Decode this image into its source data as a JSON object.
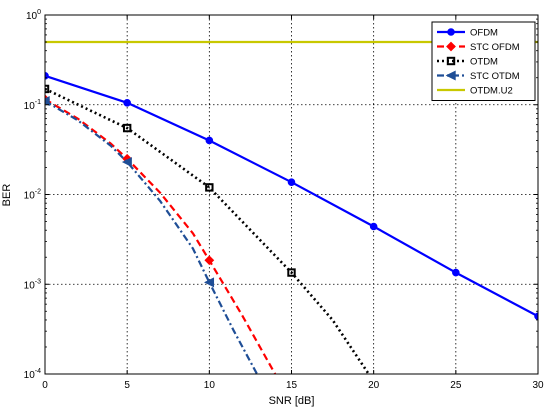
{
  "chart_data": {
    "type": "line",
    "xlabel": "SNR [dB]",
    "ylabel": "BER",
    "xlim": [
      0,
      30
    ],
    "ylim": [
      0.0001,
      1
    ],
    "yscale": "log",
    "grid": true,
    "legend_position": "top-right",
    "x_ticks": [
      "0",
      "5",
      "10",
      "15",
      "20",
      "25",
      "30"
    ],
    "y_tick_values": [
      0.0001,
      0.001,
      0.01,
      0.1,
      1
    ],
    "y_tick_labels": [
      {
        "base": "10",
        "exp": "-4"
      },
      {
        "base": "10",
        "exp": "-3"
      },
      {
        "base": "10",
        "exp": "-2"
      },
      {
        "base": "10",
        "exp": "-1"
      },
      {
        "base": "10",
        "exp": "0"
      }
    ],
    "series": [
      {
        "name": "OFDM",
        "color": "#0000ff",
        "dash": "solid",
        "marker": "circle",
        "x": [
          0,
          5,
          10,
          15,
          20,
          25,
          30
        ],
        "y": [
          0.21,
          0.105,
          0.04,
          0.0137,
          0.0044,
          0.00135,
          0.00044
        ],
        "mx": [
          0,
          5,
          10,
          15,
          20,
          25,
          30
        ]
      },
      {
        "name": "STC OFDM",
        "color": "#ff0000",
        "dash": "dashed",
        "marker": "diamond",
        "x": [
          0,
          2,
          4,
          5,
          7,
          9,
          10,
          12,
          14
        ],
        "y": [
          0.115,
          0.07,
          0.037,
          0.025,
          0.0105,
          0.0037,
          0.00185,
          0.00045,
          0.0001
        ],
        "mx": [
          0,
          5,
          10
        ]
      },
      {
        "name": "OTDM",
        "color": "#000000",
        "dash": "dotted",
        "marker": "square",
        "x": [
          0,
          5,
          10,
          15,
          17.5,
          19.7
        ],
        "y": [
          0.15,
          0.055,
          0.012,
          0.00135,
          0.0004,
          0.0001
        ],
        "mx": [
          0,
          5,
          10,
          15
        ]
      },
      {
        "name": "STC OTDM",
        "color": "#1f4e96",
        "dash": "dashdot",
        "marker": "triangle-left",
        "x": [
          0,
          2,
          4,
          5,
          7,
          9,
          10,
          11.5,
          12.9
        ],
        "y": [
          0.11,
          0.067,
          0.035,
          0.023,
          0.0085,
          0.0025,
          0.00105,
          0.0003,
          0.0001
        ],
        "mx": [
          0,
          5,
          10
        ]
      },
      {
        "name": "OTDM.U2",
        "color": "#c8c800",
        "dash": "solid",
        "marker": "none",
        "x": [
          0,
          30
        ],
        "y": [
          0.5,
          0.5
        ],
        "mx": []
      }
    ]
  }
}
